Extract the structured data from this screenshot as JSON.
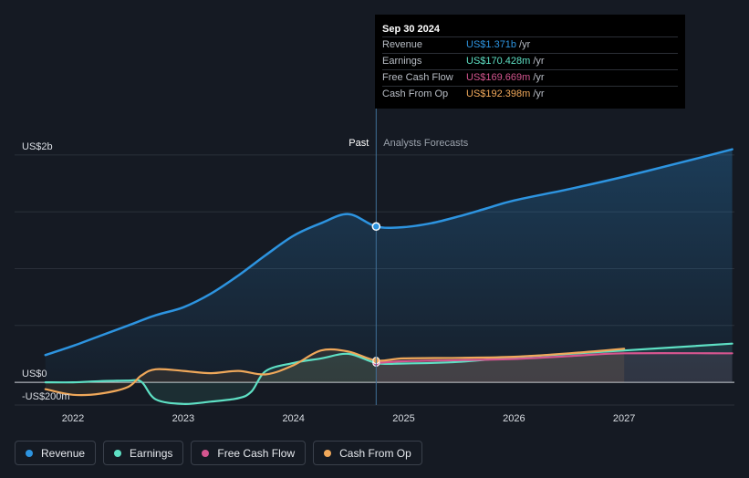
{
  "tooltip": {
    "date": "Sep 30 2024",
    "rows": [
      {
        "label": "Revenue",
        "value": "US$1.371b",
        "unit": "/yr",
        "color": "#2d94e0"
      },
      {
        "label": "Earnings",
        "value": "US$170.428m",
        "unit": "/yr",
        "color": "#5ee0c4"
      },
      {
        "label": "Free Cash Flow",
        "value": "US$169.669m",
        "unit": "/yr",
        "color": "#d4558f"
      },
      {
        "label": "Cash From Op",
        "value": "US$192.398m",
        "unit": "/yr",
        "color": "#f0a85a"
      }
    ]
  },
  "sections": {
    "past": "Past",
    "forecast": "Analysts Forecasts"
  },
  "legend": [
    {
      "label": "Revenue",
      "color": "#2d94e0"
    },
    {
      "label": "Earnings",
      "color": "#5ee0c4"
    },
    {
      "label": "Free Cash Flow",
      "color": "#d4558f"
    },
    {
      "label": "Cash From Op",
      "color": "#f0a85a"
    }
  ],
  "chart_data": {
    "type": "line",
    "ylim": [
      -200,
      2200
    ],
    "y_tick_labels": [
      {
        "value": 2000,
        "label": "US$2b"
      },
      {
        "value": 0,
        "label": "US$0"
      },
      {
        "value": -200,
        "label": "-US$200m"
      }
    ],
    "xlim": [
      2021.47,
      2028.0
    ],
    "x_ticks": [
      {
        "value": 2022,
        "label": "2022"
      },
      {
        "value": 2023,
        "label": "2023"
      },
      {
        "value": 2024,
        "label": "2024"
      },
      {
        "value": 2025,
        "label": "2025"
      },
      {
        "value": 2026,
        "label": "2026"
      },
      {
        "value": 2027,
        "label": "2027"
      }
    ],
    "past_start": 2023.75,
    "divider": 2024.75,
    "highlight_point": {
      "series": "Revenue",
      "x": 2024.75,
      "y": 1371
    },
    "series": [
      {
        "name": "Revenue",
        "color": "#2d94e0",
        "points": [
          [
            2021.75,
            240
          ],
          [
            2022.0,
            320
          ],
          [
            2022.25,
            410
          ],
          [
            2022.5,
            500
          ],
          [
            2022.75,
            590
          ],
          [
            2023.0,
            660
          ],
          [
            2023.25,
            780
          ],
          [
            2023.5,
            940
          ],
          [
            2023.75,
            1120
          ],
          [
            2024.0,
            1290
          ],
          [
            2024.25,
            1400
          ],
          [
            2024.5,
            1480
          ],
          [
            2024.75,
            1371
          ],
          [
            2025.0,
            1365
          ],
          [
            2025.25,
            1400
          ],
          [
            2025.5,
            1460
          ],
          [
            2025.75,
            1530
          ],
          [
            2026.0,
            1600
          ],
          [
            2026.5,
            1700
          ],
          [
            2027.0,
            1810
          ],
          [
            2027.5,
            1930
          ],
          [
            2027.98,
            2050
          ]
        ]
      },
      {
        "name": "Earnings",
        "color": "#5ee0c4",
        "points": [
          [
            2021.75,
            0
          ],
          [
            2022.0,
            0
          ],
          [
            2022.25,
            10
          ],
          [
            2022.5,
            15
          ],
          [
            2022.62,
            5
          ],
          [
            2022.75,
            -150
          ],
          [
            2023.0,
            -190
          ],
          [
            2023.25,
            -170
          ],
          [
            2023.5,
            -140
          ],
          [
            2023.62,
            -80
          ],
          [
            2023.75,
            100
          ],
          [
            2024.0,
            170
          ],
          [
            2024.25,
            210
          ],
          [
            2024.5,
            250
          ],
          [
            2024.75,
            170
          ],
          [
            2025.0,
            165
          ],
          [
            2025.5,
            180
          ],
          [
            2026.0,
            220
          ],
          [
            2026.5,
            250
          ],
          [
            2027.0,
            280
          ],
          [
            2027.98,
            340
          ]
        ]
      },
      {
        "name": "Free Cash Flow",
        "color": "#d4558f",
        "points": [
          [
            2024.75,
            170
          ],
          [
            2025.0,
            185
          ],
          [
            2025.5,
            195
          ],
          [
            2026.0,
            205
          ],
          [
            2026.5,
            230
          ],
          [
            2027.0,
            255
          ],
          [
            2027.98,
            255
          ]
        ]
      },
      {
        "name": "Cash From Op",
        "color": "#f0a85a",
        "points": [
          [
            2021.75,
            -60
          ],
          [
            2022.0,
            -110
          ],
          [
            2022.25,
            -100
          ],
          [
            2022.5,
            -40
          ],
          [
            2022.62,
            60
          ],
          [
            2022.75,
            115
          ],
          [
            2023.0,
            100
          ],
          [
            2023.25,
            80
          ],
          [
            2023.5,
            100
          ],
          [
            2023.75,
            70
          ],
          [
            2024.0,
            150
          ],
          [
            2024.25,
            280
          ],
          [
            2024.5,
            270
          ],
          [
            2024.75,
            192
          ],
          [
            2025.0,
            210
          ],
          [
            2025.5,
            215
          ],
          [
            2026.0,
            225
          ],
          [
            2026.5,
            255
          ],
          [
            2027.0,
            295
          ]
        ]
      }
    ]
  }
}
